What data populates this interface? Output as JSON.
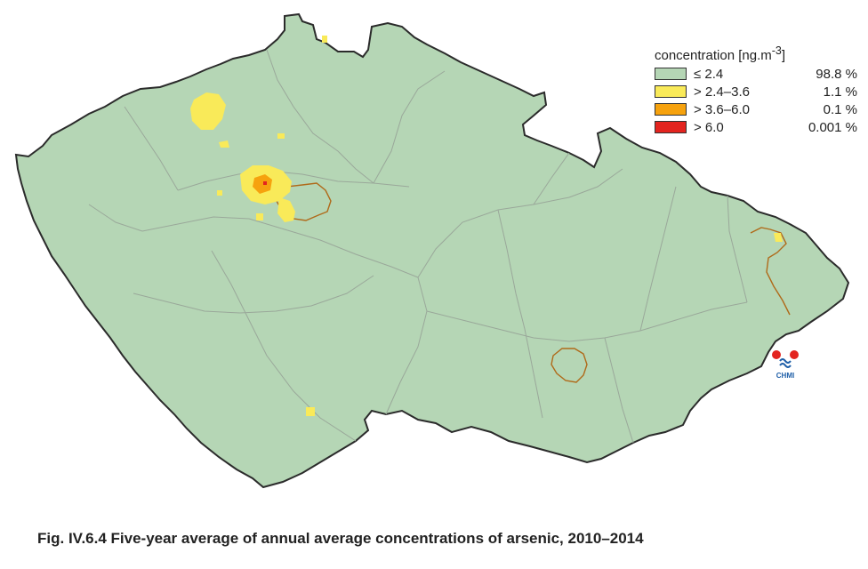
{
  "legend": {
    "title_main": "concentration [ng.m",
    "title_exp": "-3",
    "title_end": "]",
    "items": [
      {
        "range": "≤ 2.4",
        "share": "98.8 %",
        "color": "#b5d6b5"
      },
      {
        "range": "> 2.4–3.6",
        "share": "1.1 %",
        "color": "#f9ea59"
      },
      {
        "range": "> 3.6–6.0",
        "share": "0.1 %",
        "color": "#f6a20e"
      },
      {
        "range": "> 6.0",
        "share": "0.001 %",
        "color": "#e3241f"
      }
    ]
  },
  "logo": {
    "text": "CHMI",
    "colors": {
      "red": "#e3241f",
      "blue": "#1f5fa8"
    }
  },
  "caption": "Fig. IV.6.4  Five-year average of annual average concentrations of arsenic, 2010–2014",
  "map_colors": {
    "land": "#b5d6b5",
    "border": "#2b2b2b",
    "regions": "#9aa89a",
    "city_outline": "#b06a1a",
    "low": "#f9ea59",
    "mid": "#f6a20e",
    "high": "#e3241f"
  }
}
